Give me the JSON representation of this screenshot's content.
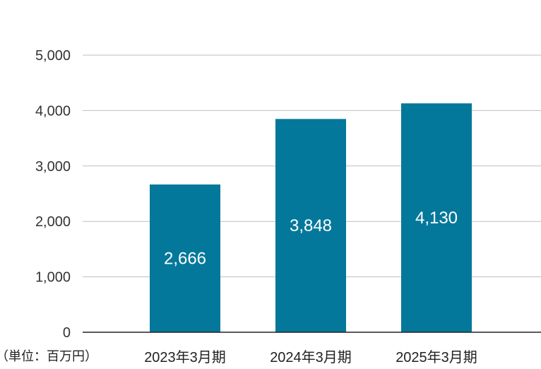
{
  "chart_data": {
    "type": "bar",
    "categories": [
      "2023年3月期",
      "2024年3月期",
      "2025年3月期"
    ],
    "values": [
      2666,
      3848,
      4130
    ],
    "value_labels": [
      "2,666",
      "3,848",
      "4,130"
    ],
    "ylim": [
      0,
      5000
    ],
    "yticks": [
      0,
      1000,
      2000,
      3000,
      4000,
      5000
    ],
    "ytick_labels": [
      "0",
      "1,000",
      "2,000",
      "3,000",
      "4,000",
      "5,000"
    ],
    "unit_label": "（単位：百万円）",
    "grid": true,
    "bar_color": "#04789a",
    "grid_color": "#bfbfbf",
    "axis_color": "#222222"
  }
}
